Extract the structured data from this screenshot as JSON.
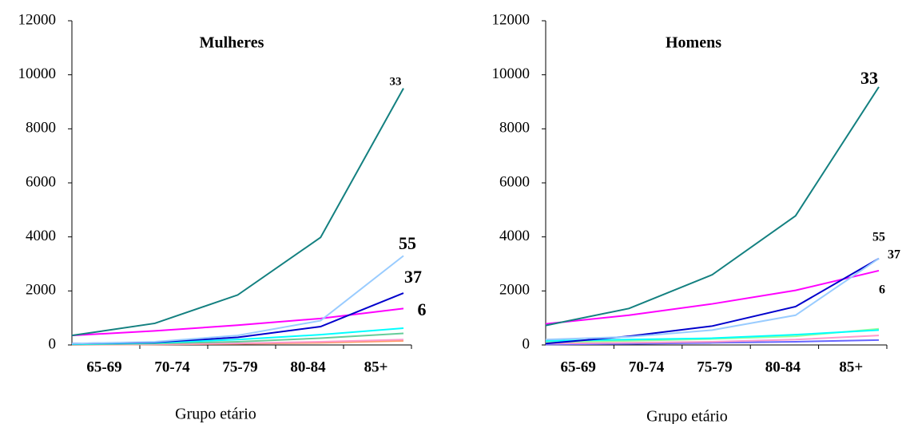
{
  "chart_data": [
    {
      "type": "line",
      "title": "Mulheres",
      "x_label": "Grupo etário",
      "categories": [
        "65-69",
        "70-74",
        "75-79",
        "80-84",
        "85+"
      ],
      "ylim": [
        0,
        12000
      ],
      "yticks": [
        0,
        2000,
        4000,
        6000,
        8000,
        10000,
        12000
      ],
      "series": [
        {
          "name": "33",
          "color": "#138080",
          "values": [
            350,
            800,
            1850,
            3980,
            9500
          ]
        },
        {
          "name": "55",
          "color": "#99ccff",
          "values": [
            50,
            120,
            350,
            900,
            3300
          ]
        },
        {
          "name": "37",
          "color": "#0000cc",
          "values": [
            50,
            100,
            280,
            680,
            1920
          ]
        },
        {
          "name": "6",
          "color": "#ff00ff",
          "values": [
            350,
            520,
            730,
            980,
            1350
          ]
        },
        {
          "color": "#00ffff",
          "values": [
            30,
            80,
            200,
            380,
            620
          ]
        },
        {
          "color": "#66cc99",
          "values": [
            20,
            50,
            120,
            250,
            430
          ]
        },
        {
          "color": "#ff99cc",
          "values": [
            10,
            30,
            60,
            120,
            200
          ]
        },
        {
          "color": "#ff9966",
          "values": [
            5,
            20,
            40,
            80,
            150
          ]
        }
      ]
    },
    {
      "type": "line",
      "title": "Homens",
      "x_label": "Grupo etário",
      "categories": [
        "65-69",
        "70-74",
        "75-79",
        "80-84",
        "85+"
      ],
      "ylim": [
        0,
        12000
      ],
      "yticks": [
        0,
        2000,
        4000,
        6000,
        8000,
        10000,
        12000
      ],
      "series": [
        {
          "name": "33",
          "color": "#138080",
          "values": [
            720,
            1350,
            2600,
            4780,
            9550
          ]
        },
        {
          "name": "55",
          "color": "#99ccff",
          "values": [
            200,
            300,
            550,
            1100,
            3200
          ]
        },
        {
          "name": "37",
          "color": "#0000cc",
          "values": [
            50,
            320,
            700,
            1420,
            3200
          ]
        },
        {
          "name": "6",
          "color": "#ff00ff",
          "values": [
            780,
            1100,
            1520,
            2020,
            2750
          ]
        },
        {
          "color": "#00ffff",
          "values": [
            150,
            200,
            250,
            380,
            550
          ]
        },
        {
          "color": "#99ff99",
          "values": [
            100,
            150,
            220,
            320,
            600
          ]
        },
        {
          "color": "#ff99cc",
          "values": [
            50,
            80,
            120,
            200,
            350
          ]
        },
        {
          "color": "#6666ff",
          "values": [
            20,
            40,
            80,
            120,
            180
          ]
        }
      ]
    }
  ]
}
